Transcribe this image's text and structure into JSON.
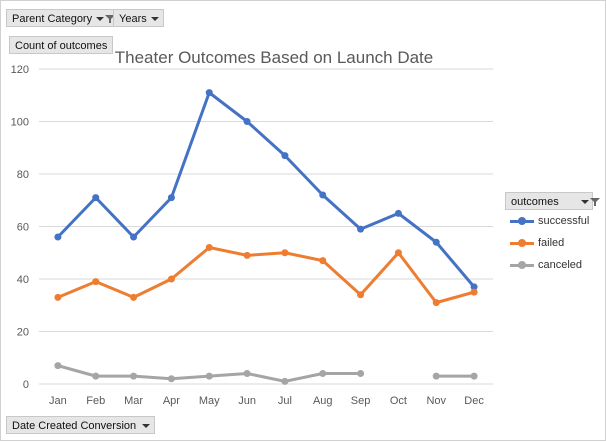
{
  "fields": {
    "parent_category": "Parent Category",
    "years": "Years",
    "count_of_outcomes": "Count of outcomes",
    "date_created": "Date Created Conversion",
    "legend_title": "outcomes"
  },
  "colors": {
    "successful": "#4472C4",
    "failed": "#ED7D31",
    "canceled": "#A5A5A5",
    "grid": "#d9d9d9",
    "axis_text": "#595959"
  },
  "chart_data": {
    "type": "line",
    "title": "Theater Outcomes Based on Launch Date",
    "xlabel": "",
    "ylabel": "",
    "ylim": [
      0,
      120
    ],
    "yticks": [
      0,
      20,
      40,
      60,
      80,
      100,
      120
    ],
    "grid": true,
    "legend_position": "right",
    "categories": [
      "Jan",
      "Feb",
      "Mar",
      "Apr",
      "May",
      "Jun",
      "Jul",
      "Aug",
      "Sep",
      "Oct",
      "Nov",
      "Dec"
    ],
    "series": [
      {
        "name": "successful",
        "values": [
          56,
          71,
          56,
          71,
          111,
          100,
          87,
          72,
          59,
          65,
          54,
          37
        ]
      },
      {
        "name": "failed",
        "values": [
          33,
          39,
          33,
          40,
          52,
          49,
          50,
          47,
          34,
          50,
          31,
          35
        ]
      },
      {
        "name": "canceled",
        "values": [
          7,
          3,
          3,
          2,
          3,
          4,
          1,
          4,
          4,
          null,
          3,
          3
        ]
      }
    ]
  }
}
